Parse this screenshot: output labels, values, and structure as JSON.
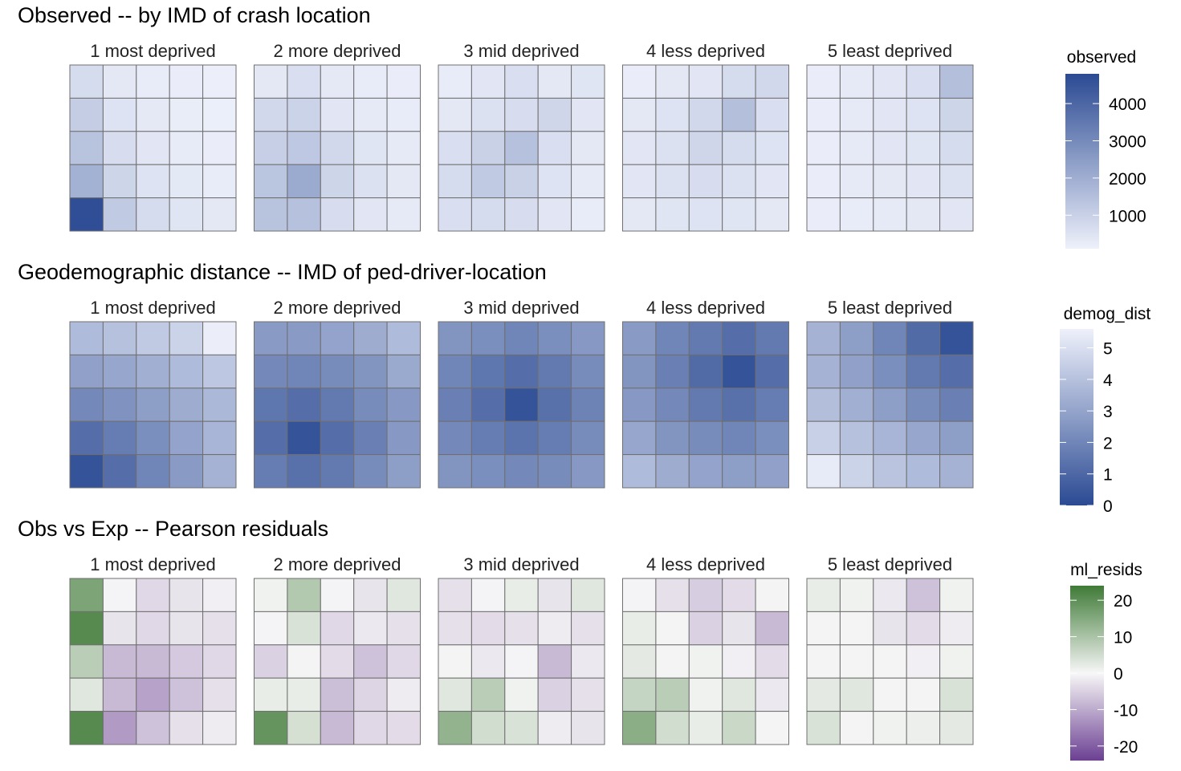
{
  "chart_data": [
    {
      "type": "heatmap",
      "title": "Observed -- by IMD of crash location",
      "facets": [
        "1 most deprived",
        "2 more deprived",
        "3 mid deprived",
        "4 less deprived",
        "5 least deprived"
      ],
      "legend": {
        "title": "observed",
        "ticks": [
          1000,
          2000,
          3000,
          4000
        ],
        "range": [
          100,
          4800
        ],
        "placement": "right"
      },
      "colors": [
        "#eef1fb",
        "#2b4a93"
      ],
      "grids": [
        [
          [
            700,
            350,
            250,
            200,
            150
          ],
          [
            1100,
            500,
            320,
            220,
            170
          ],
          [
            1400,
            650,
            400,
            270,
            200
          ],
          [
            1900,
            900,
            500,
            330,
            250
          ],
          [
            4700,
            1200,
            700,
            450,
            350
          ]
        ],
        [
          [
            350,
            600,
            320,
            250,
            200
          ],
          [
            800,
            950,
            400,
            300,
            250
          ],
          [
            1050,
            1250,
            800,
            450,
            300
          ],
          [
            1350,
            2100,
            900,
            550,
            350
          ],
          [
            1400,
            1450,
            650,
            400,
            300
          ]
        ],
        [
          [
            250,
            400,
            600,
            350,
            450
          ],
          [
            350,
            550,
            650,
            850,
            400
          ],
          [
            600,
            1000,
            1450,
            600,
            350
          ],
          [
            700,
            1200,
            1000,
            500,
            300
          ],
          [
            600,
            700,
            650,
            400,
            250
          ]
        ],
        [
          [
            200,
            350,
            400,
            700,
            800
          ],
          [
            350,
            500,
            800,
            1500,
            600
          ],
          [
            400,
            550,
            850,
            700,
            500
          ],
          [
            400,
            550,
            650,
            550,
            400
          ],
          [
            350,
            450,
            500,
            450,
            350
          ]
        ],
        [
          [
            200,
            300,
            400,
            600,
            1500
          ],
          [
            200,
            300,
            400,
            500,
            900
          ],
          [
            200,
            300,
            400,
            450,
            700
          ],
          [
            200,
            300,
            350,
            400,
            550
          ],
          [
            200,
            250,
            300,
            350,
            400
          ]
        ]
      ]
    },
    {
      "type": "heatmap",
      "title": "Geodemographic distance -- IMD of ped-driver-location",
      "facets": [
        "1 most deprived",
        "2 more deprived",
        "3 mid deprived",
        "4 less deprived",
        "5 least deprived"
      ],
      "legend": {
        "title": "demog_dist",
        "ticks": [
          0,
          1,
          2,
          3,
          4,
          5
        ],
        "range": [
          0,
          5.6
        ],
        "placement": "right"
      },
      "colors": [
        "#2b4a93",
        "#eef1fb"
      ],
      "grids": [
        [
          [
            3.8,
            4,
            4.3,
            4.6,
            5.5
          ],
          [
            2.9,
            3.1,
            3.4,
            3.8,
            4.2
          ],
          [
            2.1,
            2.4,
            2.8,
            3.3,
            3.7
          ],
          [
            1.2,
            1.7,
            2.3,
            3,
            3.6
          ],
          [
            0.3,
            1.2,
            2,
            2.7,
            3.5
          ]
        ],
        [
          [
            2.7,
            2.7,
            3,
            3.3,
            3.8
          ],
          [
            2.1,
            2,
            2.2,
            2.5,
            3.2
          ],
          [
            1.5,
            1.2,
            1.6,
            2.2,
            2.6
          ],
          [
            1.2,
            0.3,
            1.2,
            1.8,
            2.6
          ],
          [
            1.7,
            1.3,
            1.6,
            2.2,
            2.8
          ]
        ],
        [
          [
            2.5,
            2.3,
            2,
            2.3,
            2.6
          ],
          [
            2,
            1.5,
            1.2,
            1.6,
            2.2
          ],
          [
            1.8,
            1.2,
            0.3,
            1.3,
            1.9
          ],
          [
            2.1,
            1.7,
            1.4,
            1.7,
            2.2
          ],
          [
            2.5,
            2.3,
            2.1,
            2.2,
            2.6
          ]
        ],
        [
          [
            2.7,
            2,
            1.6,
            1.2,
            1.6
          ],
          [
            2.5,
            1.8,
            1.1,
            0.3,
            1.2
          ],
          [
            2.6,
            2.1,
            1.6,
            1.3,
            1.7
          ],
          [
            3.1,
            2.5,
            2.2,
            2,
            2.3
          ],
          [
            3.8,
            3.3,
            3,
            2.8,
            2.9
          ]
        ],
        [
          [
            3.5,
            2.8,
            2,
            1.1,
            0.3
          ],
          [
            3.5,
            2.9,
            2.3,
            1.6,
            1.2
          ],
          [
            3.9,
            3.4,
            2.8,
            2.2,
            1.8
          ],
          [
            4.5,
            4,
            3.6,
            3.1,
            2.8
          ],
          [
            5.4,
            4.6,
            4.1,
            3.8,
            3.5
          ]
        ]
      ]
    },
    {
      "type": "heatmap",
      "title": "Obs vs Exp -- Pearson residuals",
      "facets": [
        "1 most deprived",
        "2 more deprived",
        "3 mid deprived",
        "4 less deprived",
        "5 least deprived"
      ],
      "legend": {
        "title": "ml_resids",
        "ticks": [
          20,
          10,
          0,
          -10,
          -20
        ],
        "range": [
          -24,
          24
        ],
        "placement": "right"
      },
      "colors": [
        "#6b3f92",
        "#f7f7f7",
        "#3f7a37"
      ],
      "grids": [
        [
          [
            16,
            -0.5,
            -4,
            -2.5,
            -1
          ],
          [
            21,
            -2.5,
            -4,
            -2.5,
            -3
          ],
          [
            8,
            -8,
            -8,
            -6,
            -4
          ],
          [
            3,
            -8,
            -11,
            -7,
            -3
          ],
          [
            21,
            -12,
            -7,
            -3,
            -1.5
          ]
        ],
        [
          [
            1,
            9,
            -0.5,
            -2.5,
            3
          ],
          [
            -0.5,
            4,
            -4,
            -2,
            -3
          ],
          [
            -5,
            0.5,
            -3.5,
            -7,
            -4
          ],
          [
            2,
            2,
            -7.5,
            -4.5,
            -1.5
          ],
          [
            19,
            4.5,
            -8,
            -4,
            -3.5
          ]
        ],
        [
          [
            -3,
            -0.5,
            2,
            -2.5,
            3
          ],
          [
            -3,
            -3.5,
            -3,
            -1.5,
            -3
          ],
          [
            0.5,
            -2,
            -0.5,
            -8,
            -2
          ],
          [
            3,
            8,
            1,
            -5,
            -3
          ],
          [
            13,
            5,
            4,
            -1.5,
            -2.5
          ]
        ],
        [
          [
            -0.5,
            -3,
            -5.5,
            -3.5,
            0.5
          ],
          [
            2,
            0.5,
            -5,
            -2.5,
            -8
          ],
          [
            2.5,
            0.5,
            1,
            -1,
            -3.5
          ],
          [
            6.5,
            8,
            1,
            3,
            -2
          ],
          [
            14,
            5,
            2,
            6,
            0.5
          ]
        ],
        [
          [
            2,
            1,
            -2,
            -7,
            1
          ],
          [
            0.5,
            0.5,
            -2.5,
            -3.5,
            -1.5
          ],
          [
            0.5,
            0.5,
            0.5,
            -1,
            1
          ],
          [
            2.5,
            3,
            0.5,
            0.5,
            4
          ],
          [
            4,
            0.5,
            1,
            1.5,
            2.5
          ]
        ]
      ]
    }
  ]
}
